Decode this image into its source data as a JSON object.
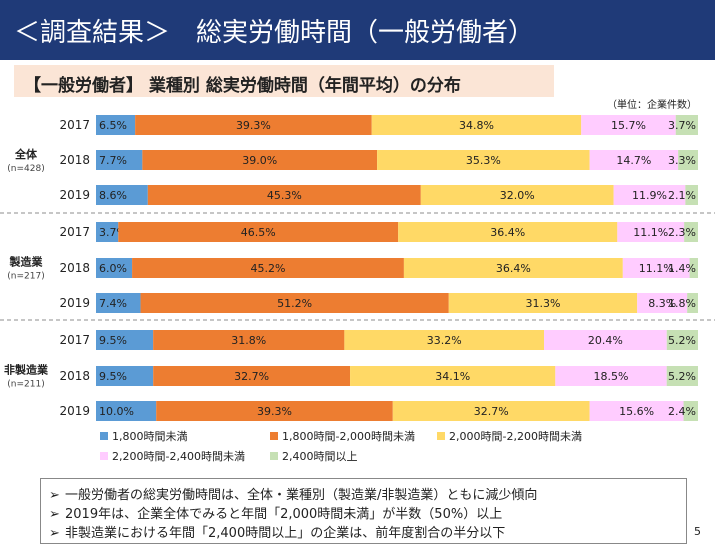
{
  "header": {
    "title": "＜調査結果＞　総実労働時間（一般労働者）",
    "subtitle": "【一般労働者】 業種別 総実労働時間（年間平均）の分布",
    "unit": "（単位：企業件数）"
  },
  "chart_data": {
    "type": "bar",
    "orientation": "horizontal-stacked-100",
    "legend_position": "bottom",
    "colors": [
      "#5b9bd5",
      "#ed7d31",
      "#ffd966",
      "#ffccff",
      "#c6e0b4"
    ],
    "series": [
      {
        "name": "1,800時間未満"
      },
      {
        "name": "1,800時間-2,000時間未満"
      },
      {
        "name": "2,000時間-2,200時間未満"
      },
      {
        "name": "2,200時間-2,400時間未満"
      },
      {
        "name": "2,400時間以上"
      }
    ],
    "groups": [
      {
        "name": "全体",
        "n": "(n=428)",
        "rows": [
          {
            "year": "2017",
            "values": [
              6.5,
              39.3,
              34.8,
              15.7,
              3.7
            ],
            "labels": [
              "6.5%",
              "39.3%",
              "34.8%",
              "15.7%",
              "3.7%"
            ]
          },
          {
            "year": "2018",
            "values": [
              7.7,
              39.0,
              35.3,
              14.7,
              3.3
            ],
            "labels": [
              "7.7%",
              "39.0%",
              "35.3%",
              "14.7%",
              "3.3%"
            ]
          },
          {
            "year": "2019",
            "values": [
              8.6,
              45.3,
              32.0,
              11.9,
              2.1
            ],
            "labels": [
              "8.6%",
              "45.3%",
              "32.0%",
              "11.9%",
              "2.1%"
            ]
          }
        ]
      },
      {
        "name": "製造業",
        "n": "(n=217)",
        "rows": [
          {
            "year": "2017",
            "values": [
              3.7,
              46.5,
              36.4,
              11.1,
              2.3
            ],
            "labels": [
              "3.7%",
              "46.5%",
              "36.4%",
              "11.1%",
              "2.3%"
            ]
          },
          {
            "year": "2018",
            "values": [
              6.0,
              45.2,
              36.4,
              11.1,
              1.4
            ],
            "labels": [
              "6.0%",
              "45.2%",
              "36.4%",
              "11.1%",
              "1.4%"
            ]
          },
          {
            "year": "2019",
            "values": [
              7.4,
              51.2,
              31.3,
              8.3,
              1.8
            ],
            "labels": [
              "7.4%",
              "51.2%",
              "31.3%",
              "8.3%",
              "1.8%"
            ]
          }
        ]
      },
      {
        "name": "非製造業",
        "n": "(n=211)",
        "rows": [
          {
            "year": "2017",
            "values": [
              9.5,
              31.8,
              33.2,
              20.4,
              5.2
            ],
            "labels": [
              "9.5%",
              "31.8%",
              "33.2%",
              "20.4%",
              "5.2%"
            ]
          },
          {
            "year": "2018",
            "values": [
              9.5,
              32.7,
              34.1,
              18.5,
              5.2
            ],
            "labels": [
              "9.5%",
              "32.7%",
              "34.1%",
              "18.5%",
              "5.2%"
            ]
          },
          {
            "year": "2019",
            "values": [
              10.0,
              39.3,
              32.7,
              15.6,
              2.4
            ],
            "labels": [
              "10.0%",
              "39.3%",
              "32.7%",
              "15.6%",
              "2.4%"
            ]
          }
        ]
      }
    ]
  },
  "notes": {
    "marker": "➢",
    "items": [
      "一般労働者の総実労働時間は、全体・業種別（製造業/非製造業）ともに減少傾向",
      "2019年は、企業全体でみると年間「2,000時間未満」が半数（50%）以上",
      "非製造業における年間「2,400時間以上」の企業は、前年度割合の半分以下"
    ]
  },
  "page_number": "5"
}
